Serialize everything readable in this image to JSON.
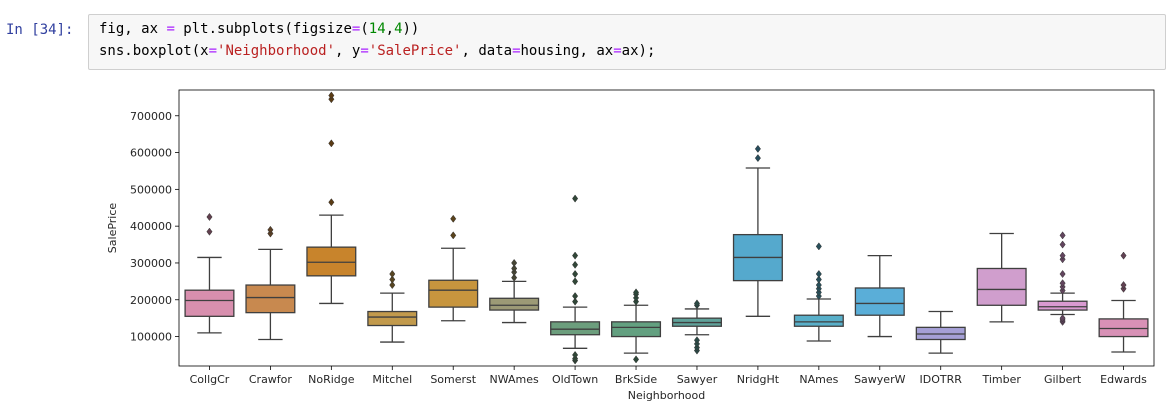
{
  "cell": {
    "prompt": "In [34]:",
    "code_line1": {
      "a": "fig, ax ",
      "eq": "=",
      "b": " plt.subplots(figsize",
      "eq2": "=",
      "c": "(",
      "n1": "14",
      "d": ",",
      "n2": "4",
      "e": "))"
    },
    "code_line2": {
      "a": "sns.boxplot(x",
      "eq1": "=",
      "s1": "'Neighborhood'",
      "b": ", y",
      "eq2": "=",
      "s2": "'SalePrice'",
      "c": ", data",
      "eq3": "=",
      "d": "housing, ax",
      "eq4": "=",
      "e": "ax);"
    }
  },
  "chart_data": {
    "type": "boxplot",
    "xlabel": "Neighborhood",
    "ylabel": "SalePrice",
    "ylim": [
      20000,
      770000
    ],
    "yticks": [
      100000,
      200000,
      300000,
      400000,
      500000,
      600000,
      700000
    ],
    "ytick_labels": [
      "100000",
      "200000",
      "300000",
      "400000",
      "500000",
      "600000",
      "700000"
    ],
    "grid": false,
    "categories": [
      "CollgCr",
      "Crawfor",
      "NoRidge",
      "Mitchel",
      "Somerst",
      "NWAmes",
      "OldTown",
      "BrkSide",
      "Sawyer",
      "NridgHt",
      "NAmes",
      "SawyerW",
      "IDOTRR",
      "Timber",
      "Gilbert",
      "Edwards"
    ],
    "boxes": [
      {
        "category": "CollgCr",
        "color": "#d88fae",
        "whisker_low": 110000,
        "q1": 155000,
        "median": 198000,
        "q3": 226000,
        "whisker_high": 315000,
        "outliers": [
          385000,
          425000
        ]
      },
      {
        "category": "Crawfor",
        "color": "#c8894f",
        "whisker_low": 92000,
        "q1": 165000,
        "median": 206000,
        "q3": 240000,
        "whisker_high": 337000,
        "outliers": [
          380000,
          390000
        ]
      },
      {
        "category": "NoRidge",
        "color": "#c8842c",
        "whisker_low": 190000,
        "q1": 265000,
        "median": 302000,
        "q3": 343000,
        "whisker_high": 430000,
        "outliers": [
          465000,
          625000,
          745000,
          755000
        ]
      },
      {
        "category": "Mitchel",
        "color": "#c29a4c",
        "whisker_low": 85000,
        "q1": 130000,
        "median": 153000,
        "q3": 168000,
        "whisker_high": 218000,
        "outliers": [
          240000,
          255000,
          270000
        ]
      },
      {
        "category": "Somerst",
        "color": "#c7953e",
        "whisker_low": 143000,
        "q1": 180000,
        "median": 226000,
        "q3": 253000,
        "whisker_high": 340000,
        "outliers": [
          375000,
          420000
        ]
      },
      {
        "category": "NWAmes",
        "color": "#9c9a76",
        "whisker_low": 138000,
        "q1": 172000,
        "median": 185000,
        "q3": 204000,
        "whisker_high": 250000,
        "outliers": [
          260000,
          275000,
          285000,
          300000
        ]
      },
      {
        "category": "OldTown",
        "color": "#6c9e7d",
        "whisker_low": 68000,
        "q1": 105000,
        "median": 120000,
        "q3": 140000,
        "whisker_high": 180000,
        "outliers": [
          35000,
          40000,
          50000,
          195000,
          210000,
          250000,
          270000,
          295000,
          320000,
          475000
        ]
      },
      {
        "category": "BrkSide",
        "color": "#63a080",
        "whisker_low": 55000,
        "q1": 100000,
        "median": 125000,
        "q3": 140000,
        "whisker_high": 185000,
        "outliers": [
          38000,
          195000,
          205000,
          215000,
          220000
        ]
      },
      {
        "category": "Sawyer",
        "color": "#5fa29a",
        "whisker_low": 105000,
        "q1": 128000,
        "median": 138000,
        "q3": 150000,
        "whisker_high": 175000,
        "outliers": [
          62000,
          70000,
          80000,
          90000,
          185000,
          190000
        ]
      },
      {
        "category": "NridgHt",
        "color": "#55a9cd",
        "whisker_low": 155000,
        "q1": 252000,
        "median": 315000,
        "q3": 377000,
        "whisker_high": 558000,
        "outliers": [
          585000,
          610000
        ]
      },
      {
        "category": "NAmes",
        "color": "#58afc9",
        "whisker_low": 88000,
        "q1": 128000,
        "median": 140000,
        "q3": 158000,
        "whisker_high": 202000,
        "outliers": [
          210000,
          220000,
          230000,
          240000,
          255000,
          270000,
          345000
        ]
      },
      {
        "category": "SawyerW",
        "color": "#5aaed8",
        "whisker_low": 100000,
        "q1": 158000,
        "median": 190000,
        "q3": 232000,
        "whisker_high": 320000,
        "outliers": []
      },
      {
        "category": "IDOTRR",
        "color": "#a5a0d6",
        "whisker_low": 55000,
        "q1": 92000,
        "median": 107000,
        "q3": 125000,
        "whisker_high": 168000,
        "outliers": []
      },
      {
        "category": "Timber",
        "color": "#d09ecd",
        "whisker_low": 140000,
        "q1": 185000,
        "median": 228000,
        "q3": 285000,
        "whisker_high": 380000,
        "outliers": []
      },
      {
        "category": "Gilbert",
        "color": "#d99ad1",
        "whisker_low": 160000,
        "q1": 172000,
        "median": 181000,
        "q3": 196000,
        "whisker_high": 218000,
        "outliers": [
          140000,
          145000,
          150000,
          225000,
          235000,
          245000,
          270000,
          310000,
          320000,
          350000,
          375000
        ]
      },
      {
        "category": "Edwards",
        "color": "#d891b6",
        "whisker_low": 58000,
        "q1": 100000,
        "median": 122000,
        "q3": 148000,
        "whisker_high": 198000,
        "outliers": [
          230000,
          240000,
          320000
        ]
      }
    ]
  }
}
